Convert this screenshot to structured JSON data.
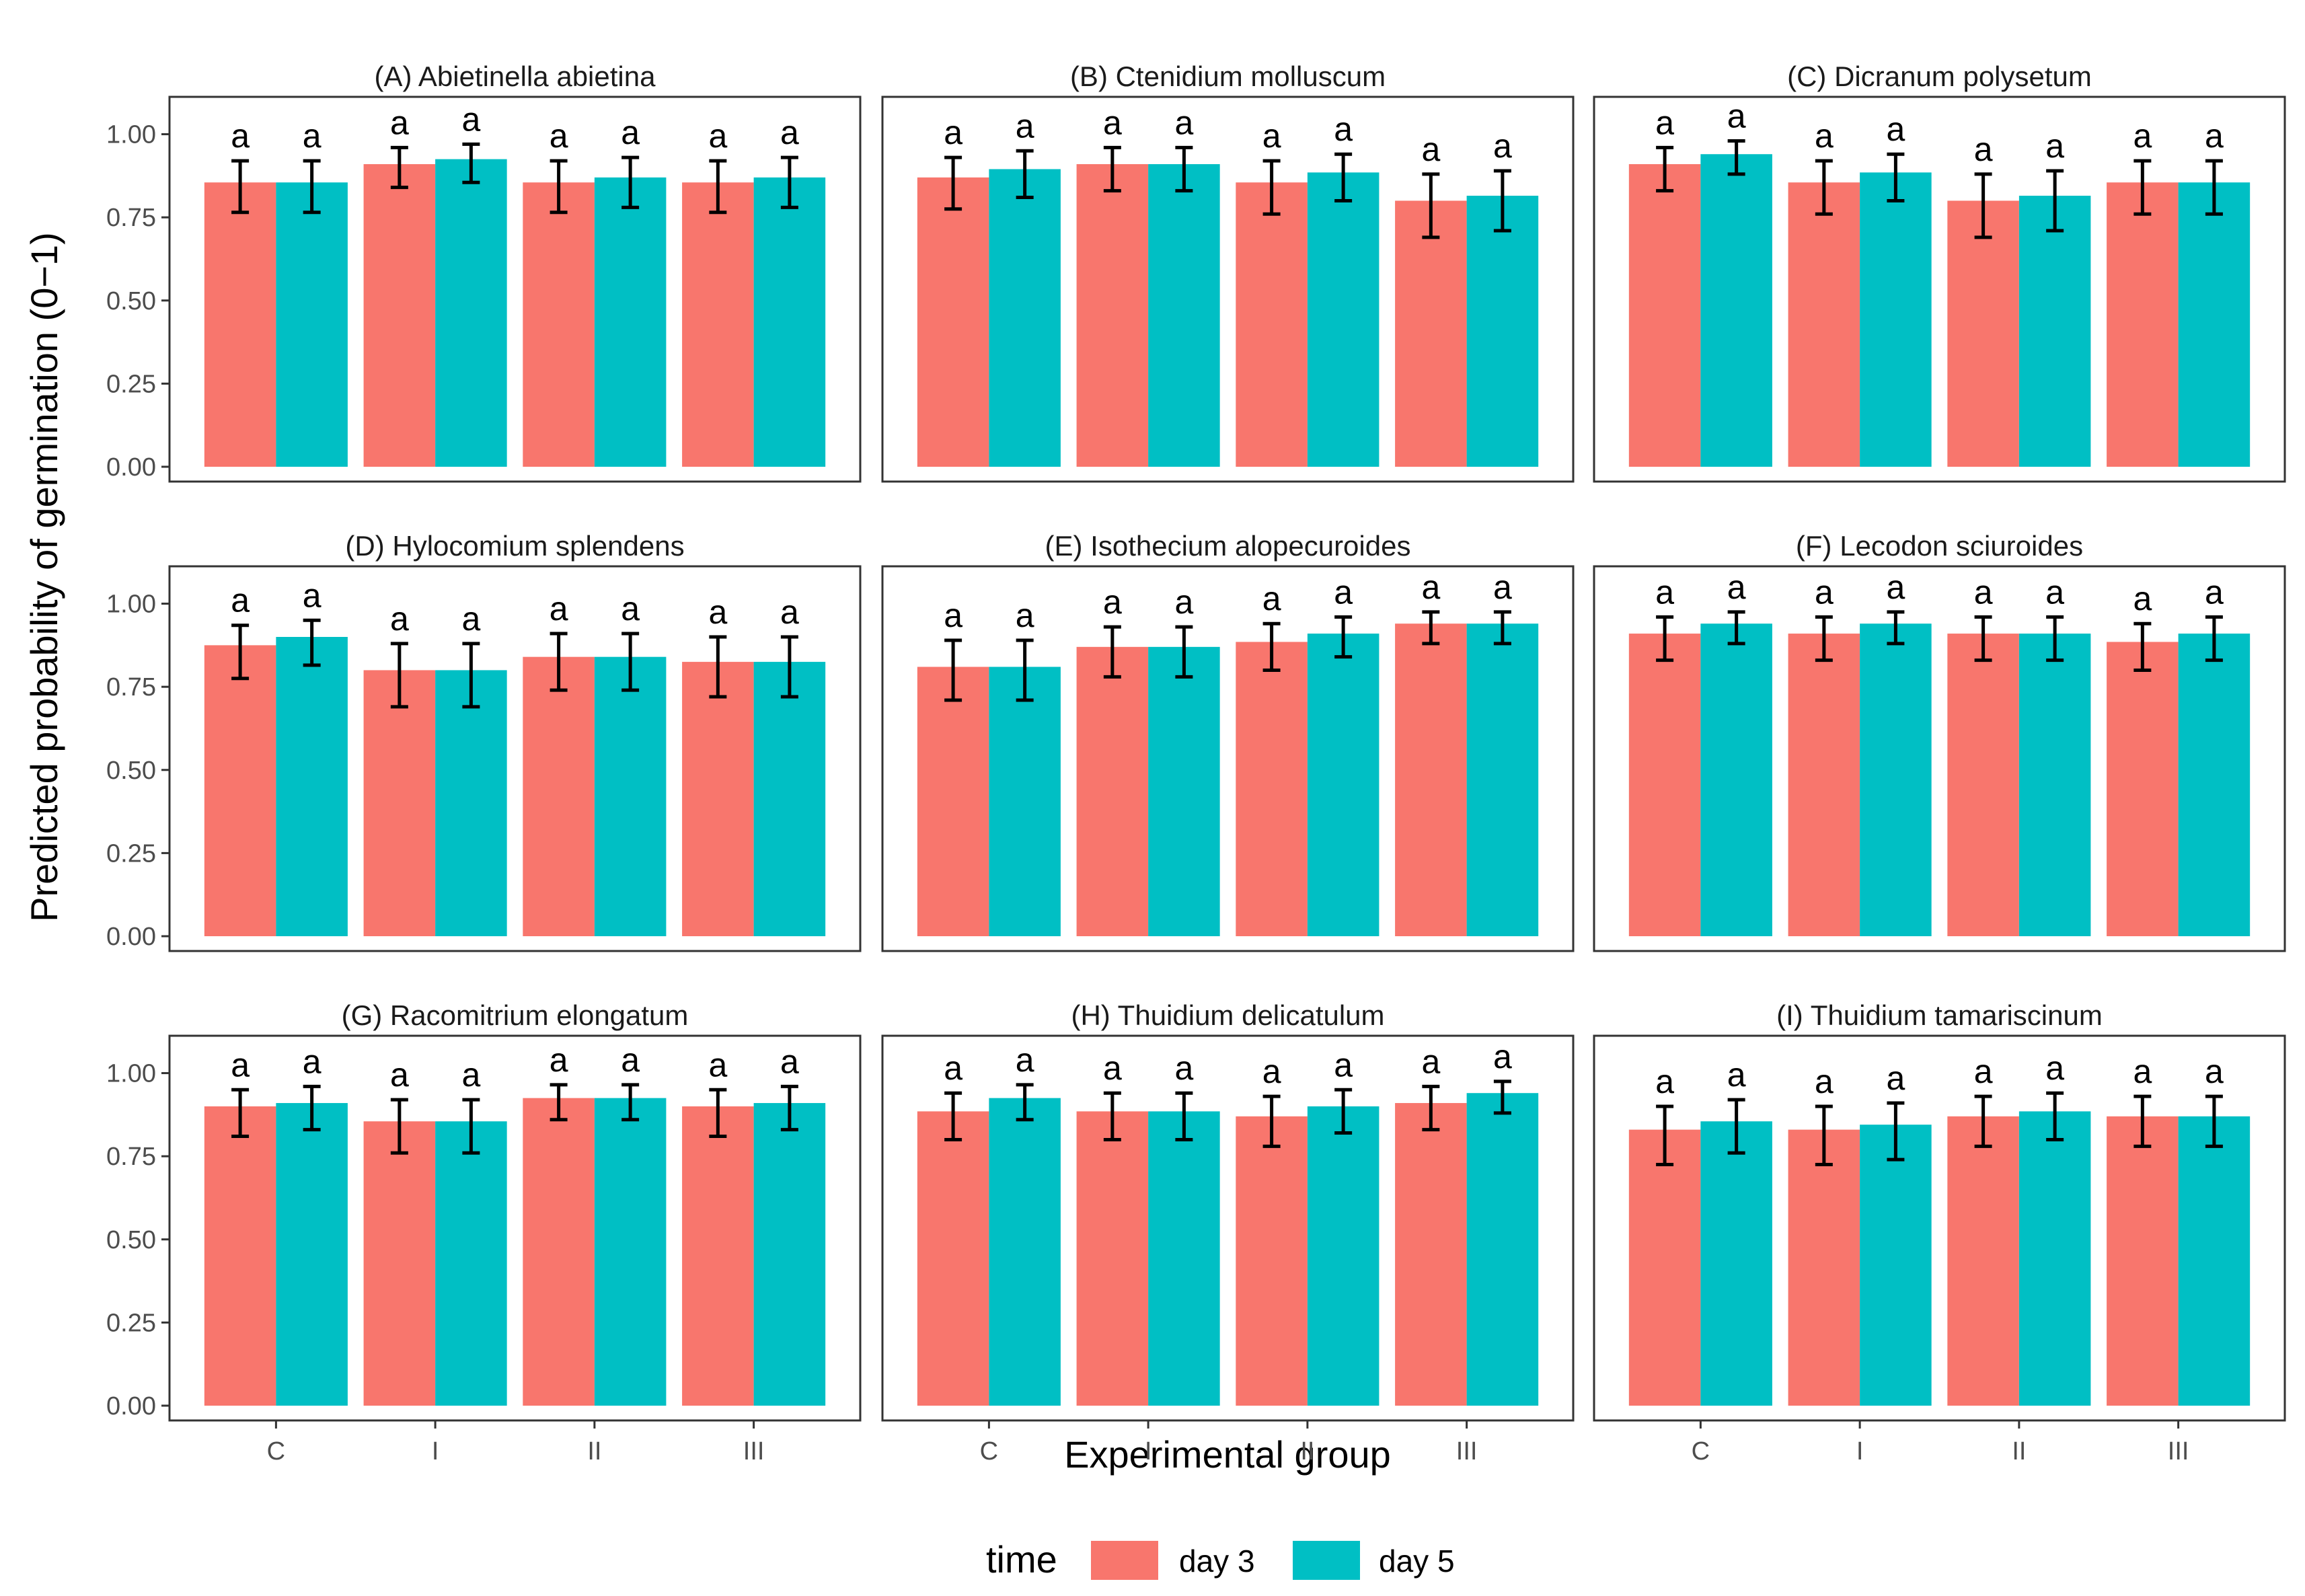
{
  "chart_data": {
    "type": "bar",
    "layout": "facet-3x3",
    "xlabel": "Experimental group",
    "ylabel": "Predicted probability of germination (0−1)",
    "categories": [
      "C",
      "I",
      "II",
      "III"
    ],
    "ylim": [
      0,
      1.08
    ],
    "yticks": [
      "0.00",
      "0.25",
      "0.50",
      "0.75",
      "1.00"
    ],
    "ytick_values": [
      0,
      0.25,
      0.5,
      0.75,
      1.0
    ],
    "legend": {
      "title": "time",
      "position": "bottom",
      "items": [
        {
          "label": "day 3",
          "color": "#F8766D"
        },
        {
          "label": "day 5",
          "color": "#00BFC4"
        }
      ]
    },
    "panels": [
      {
        "title": "(A) Abietinella abietina",
        "series": [
          {
            "name": "day 3",
            "values": [
              0.855,
              0.91,
              0.855,
              0.855
            ],
            "lower": [
              0.765,
              0.84,
              0.765,
              0.765
            ],
            "upper": [
              0.92,
              0.96,
              0.92,
              0.92
            ],
            "labels": [
              "a",
              "a",
              "a",
              "a"
            ]
          },
          {
            "name": "day 5",
            "values": [
              0.855,
              0.925,
              0.87,
              0.87
            ],
            "lower": [
              0.765,
              0.855,
              0.78,
              0.78
            ],
            "upper": [
              0.92,
              0.97,
              0.93,
              0.93
            ],
            "labels": [
              "a",
              "a",
              "a",
              "a"
            ]
          }
        ]
      },
      {
        "title": "(B) Ctenidium molluscum",
        "series": [
          {
            "name": "day 3",
            "values": [
              0.87,
              0.91,
              0.855,
              0.8
            ],
            "lower": [
              0.775,
              0.83,
              0.76,
              0.69
            ],
            "upper": [
              0.93,
              0.96,
              0.92,
              0.88
            ],
            "labels": [
              "a",
              "a",
              "a",
              "a"
            ]
          },
          {
            "name": "day 5",
            "values": [
              0.895,
              0.91,
              0.885,
              0.815
            ],
            "lower": [
              0.81,
              0.83,
              0.8,
              0.71
            ],
            "upper": [
              0.95,
              0.96,
              0.94,
              0.89
            ],
            "labels": [
              "a",
              "a",
              "a",
              "a"
            ]
          }
        ]
      },
      {
        "title": "(C) Dicranum polysetum",
        "series": [
          {
            "name": "day 3",
            "values": [
              0.91,
              0.855,
              0.8,
              0.855
            ],
            "lower": [
              0.83,
              0.76,
              0.69,
              0.76
            ],
            "upper": [
              0.96,
              0.92,
              0.88,
              0.92
            ],
            "labels": [
              "a",
              "a",
              "a",
              "a"
            ]
          },
          {
            "name": "day 5",
            "values": [
              0.94,
              0.885,
              0.815,
              0.855
            ],
            "lower": [
              0.88,
              0.8,
              0.71,
              0.76
            ],
            "upper": [
              0.98,
              0.94,
              0.89,
              0.92
            ],
            "labels": [
              "a",
              "a",
              "a",
              "a"
            ]
          }
        ]
      },
      {
        "title": "(D) Hylocomium splendens",
        "series": [
          {
            "name": "day 3",
            "values": [
              0.875,
              0.8,
              0.84,
              0.825
            ],
            "lower": [
              0.775,
              0.69,
              0.74,
              0.72
            ],
            "upper": [
              0.935,
              0.88,
              0.91,
              0.9
            ],
            "labels": [
              "a",
              "a",
              "a",
              "a"
            ]
          },
          {
            "name": "day 5",
            "values": [
              0.9,
              0.8,
              0.84,
              0.825
            ],
            "lower": [
              0.815,
              0.69,
              0.74,
              0.72
            ],
            "upper": [
              0.95,
              0.88,
              0.91,
              0.9
            ],
            "labels": [
              "a",
              "a",
              "a",
              "a"
            ]
          }
        ]
      },
      {
        "title": "(E) Isothecium alopecuroides",
        "series": [
          {
            "name": "day 3",
            "values": [
              0.81,
              0.87,
              0.885,
              0.94
            ],
            "lower": [
              0.71,
              0.78,
              0.8,
              0.88
            ],
            "upper": [
              0.89,
              0.93,
              0.94,
              0.975
            ],
            "labels": [
              "a",
              "a",
              "a",
              "a"
            ]
          },
          {
            "name": "day 5",
            "values": [
              0.81,
              0.87,
              0.91,
              0.94
            ],
            "lower": [
              0.71,
              0.78,
              0.84,
              0.88
            ],
            "upper": [
              0.89,
              0.93,
              0.96,
              0.975
            ],
            "labels": [
              "a",
              "a",
              "a",
              "a"
            ]
          }
        ]
      },
      {
        "title": "(F) Lecodon sciuroides",
        "series": [
          {
            "name": "day 3",
            "values": [
              0.91,
              0.91,
              0.91,
              0.885
            ],
            "lower": [
              0.83,
              0.83,
              0.83,
              0.8
            ],
            "upper": [
              0.96,
              0.96,
              0.96,
              0.94
            ],
            "labels": [
              "a",
              "a",
              "a",
              "a"
            ]
          },
          {
            "name": "day 5",
            "values": [
              0.94,
              0.94,
              0.91,
              0.91
            ],
            "lower": [
              0.88,
              0.88,
              0.83,
              0.83
            ],
            "upper": [
              0.975,
              0.975,
              0.96,
              0.96
            ],
            "labels": [
              "a",
              "a",
              "a",
              "a"
            ]
          }
        ]
      },
      {
        "title": "(G) Racomitrium elongatum",
        "series": [
          {
            "name": "day 3",
            "values": [
              0.9,
              0.855,
              0.925,
              0.9
            ],
            "lower": [
              0.81,
              0.76,
              0.86,
              0.81
            ],
            "upper": [
              0.95,
              0.92,
              0.965,
              0.95
            ],
            "labels": [
              "a",
              "a",
              "a",
              "a"
            ]
          },
          {
            "name": "day 5",
            "values": [
              0.91,
              0.855,
              0.925,
              0.91
            ],
            "lower": [
              0.83,
              0.76,
              0.86,
              0.83
            ],
            "upper": [
              0.96,
              0.92,
              0.965,
              0.96
            ],
            "labels": [
              "a",
              "a",
              "a",
              "a"
            ]
          }
        ]
      },
      {
        "title": "(H) Thuidium delicatulum",
        "series": [
          {
            "name": "day 3",
            "values": [
              0.885,
              0.885,
              0.87,
              0.91
            ],
            "lower": [
              0.8,
              0.8,
              0.78,
              0.83
            ],
            "upper": [
              0.94,
              0.94,
              0.93,
              0.96
            ],
            "labels": [
              "a",
              "a",
              "a",
              "a"
            ]
          },
          {
            "name": "day 5",
            "values": [
              0.925,
              0.885,
              0.9,
              0.94
            ],
            "lower": [
              0.86,
              0.8,
              0.82,
              0.88
            ],
            "upper": [
              0.965,
              0.94,
              0.95,
              0.975
            ],
            "labels": [
              "a",
              "a",
              "a",
              "a"
            ]
          }
        ]
      },
      {
        "title": "(I) Thuidium tamariscinum",
        "series": [
          {
            "name": "day 3",
            "values": [
              0.83,
              0.83,
              0.87,
              0.87
            ],
            "lower": [
              0.725,
              0.725,
              0.78,
              0.78
            ],
            "upper": [
              0.9,
              0.9,
              0.93,
              0.93
            ],
            "labels": [
              "a",
              "a",
              "a",
              "a"
            ]
          },
          {
            "name": "day 5",
            "values": [
              0.855,
              0.845,
              0.885,
              0.87
            ],
            "lower": [
              0.76,
              0.74,
              0.8,
              0.78
            ],
            "upper": [
              0.92,
              0.91,
              0.94,
              0.93
            ],
            "labels": [
              "a",
              "a",
              "a",
              "a"
            ]
          }
        ]
      }
    ]
  }
}
